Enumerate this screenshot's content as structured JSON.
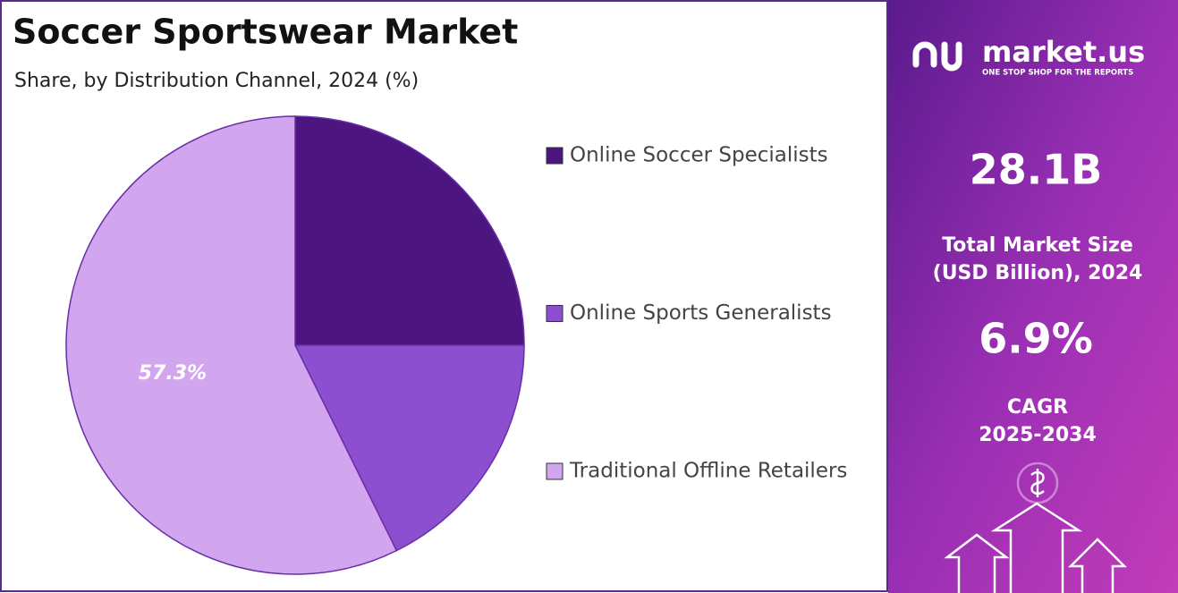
{
  "chart_data": {
    "type": "pie",
    "title": "Soccer Sportswear Market",
    "subtitle": "Share, by Distribution Channel, 2024 (%)",
    "categories": [
      "Online Soccer Specialists",
      "Online Sports Generalists",
      "Traditional Offline Retailers"
    ],
    "values": [
      25,
      17.7,
      57.3
    ],
    "value_labels": [
      null,
      null,
      "57.3%"
    ],
    "colors": [
      "#4c1580",
      "#8c4fd0",
      "#d2a6ee"
    ],
    "start_angle": 0,
    "direction": "clockwise",
    "legend": "right"
  },
  "brand": {
    "name": "market.us",
    "tagline": "ONE STOP SHOP FOR THE REPORTS"
  },
  "stats": [
    {
      "value": "28.1B",
      "label": [
        "Total Market Size",
        "(USD Billion), 2024"
      ]
    },
    {
      "value": "6.9%",
      "label": [
        "CAGR",
        "2025-2034"
      ]
    }
  ]
}
